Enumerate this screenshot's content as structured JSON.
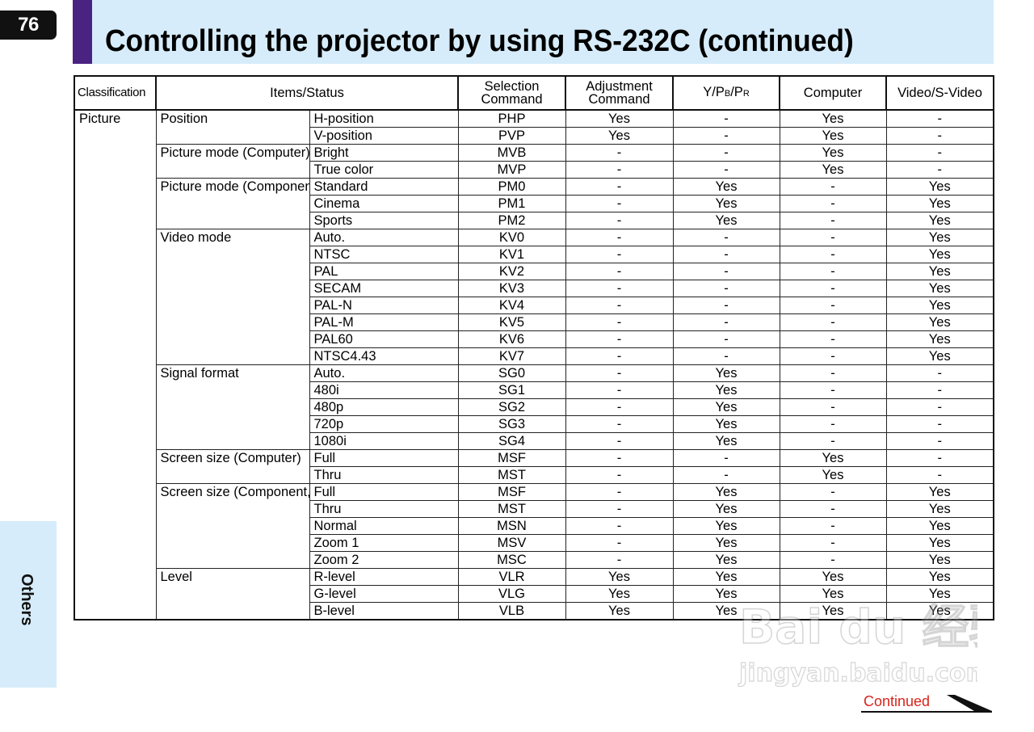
{
  "page": {
    "number": "76",
    "title": "Controlling the projector by using RS-232C (continued)",
    "side_tab": "Others",
    "continued_label": "Continued"
  },
  "table": {
    "headers": {
      "classification": "Classification",
      "items_status": "Items/Status",
      "selection_line1": "Selection",
      "selection_line2": "Command",
      "adjustment_line1": "Adjustment",
      "adjustment_line2": "Command",
      "ypbpr_y": "Y/P",
      "ypbpr_b": "B",
      "ypbpr_sep": "/P",
      "ypbpr_r": "R",
      "computer": "Computer",
      "video": "Video/S-Video"
    },
    "classification": "Picture",
    "groups": [
      {
        "label": "Position",
        "rows": [
          {
            "item": "H-position",
            "cmd": "PHP",
            "adj": "Yes",
            "ypbpr": "-",
            "computer": "Yes",
            "video": "-"
          },
          {
            "item": "V-position",
            "cmd": "PVP",
            "adj": "Yes",
            "ypbpr": "-",
            "computer": "Yes",
            "video": "-"
          }
        ]
      },
      {
        "label": "Picture mode (Computer)",
        "rows": [
          {
            "item": "Bright",
            "cmd": "MVB",
            "adj": "-",
            "ypbpr": "-",
            "computer": "Yes",
            "video": "-"
          },
          {
            "item": "True color",
            "cmd": "MVP",
            "adj": "-",
            "ypbpr": "-",
            "computer": "Yes",
            "video": "-"
          }
        ]
      },
      {
        "label": "Picture mode (Component, Video, S-Video)",
        "rows": [
          {
            "item": "Standard",
            "cmd": "PM0",
            "adj": "-",
            "ypbpr": "Yes",
            "computer": "-",
            "video": "Yes"
          },
          {
            "item": "Cinema",
            "cmd": "PM1",
            "adj": "-",
            "ypbpr": "Yes",
            "computer": "-",
            "video": "Yes"
          },
          {
            "item": "Sports",
            "cmd": "PM2",
            "adj": "-",
            "ypbpr": "Yes",
            "computer": "-",
            "video": "Yes"
          }
        ]
      },
      {
        "label": "Video mode",
        "rows": [
          {
            "item": "Auto.",
            "cmd": "KV0",
            "adj": "-",
            "ypbpr": "-",
            "computer": "-",
            "video": "Yes"
          },
          {
            "item": "NTSC",
            "cmd": "KV1",
            "adj": "-",
            "ypbpr": "-",
            "computer": "-",
            "video": "Yes"
          },
          {
            "item": "PAL",
            "cmd": "KV2",
            "adj": "-",
            "ypbpr": "-",
            "computer": "-",
            "video": "Yes"
          },
          {
            "item": "SECAM",
            "cmd": "KV3",
            "adj": "-",
            "ypbpr": "-",
            "computer": "-",
            "video": "Yes"
          },
          {
            "item": "PAL-N",
            "cmd": "KV4",
            "adj": "-",
            "ypbpr": "-",
            "computer": "-",
            "video": "Yes"
          },
          {
            "item": "PAL-M",
            "cmd": "KV5",
            "adj": "-",
            "ypbpr": "-",
            "computer": "-",
            "video": "Yes"
          },
          {
            "item": "PAL60",
            "cmd": "KV6",
            "adj": "-",
            "ypbpr": "-",
            "computer": "-",
            "video": "Yes"
          },
          {
            "item": "NTSC4.43",
            "cmd": "KV7",
            "adj": "-",
            "ypbpr": "-",
            "computer": "-",
            "video": "Yes"
          }
        ]
      },
      {
        "label": "Signal format",
        "rows": [
          {
            "item": "Auto.",
            "cmd": "SG0",
            "adj": "-",
            "ypbpr": "Yes",
            "computer": "-",
            "video": "-"
          },
          {
            "item": "480i",
            "cmd": "SG1",
            "adj": "-",
            "ypbpr": "Yes",
            "computer": "-",
            "video": "-"
          },
          {
            "item": "480p",
            "cmd": "SG2",
            "adj": "-",
            "ypbpr": "Yes",
            "computer": "-",
            "video": "-"
          },
          {
            "item": "720p",
            "cmd": "SG3",
            "adj": "-",
            "ypbpr": "Yes",
            "computer": "-",
            "video": "-"
          },
          {
            "item": "1080i",
            "cmd": "SG4",
            "adj": "-",
            "ypbpr": "Yes",
            "computer": "-",
            "video": "-"
          }
        ]
      },
      {
        "label": "Screen size (Computer)",
        "rows": [
          {
            "item": "Full",
            "cmd": "MSF",
            "adj": "-",
            "ypbpr": "-",
            "computer": "Yes",
            "video": "-"
          },
          {
            "item": "Thru",
            "cmd": "MST",
            "adj": "-",
            "ypbpr": "-",
            "computer": "Yes",
            "video": "-"
          }
        ]
      },
      {
        "label": "Screen size (Component, Video, S-Video)",
        "rows": [
          {
            "item": "Full",
            "cmd": "MSF",
            "adj": "-",
            "ypbpr": "Yes",
            "computer": "-",
            "video": "Yes"
          },
          {
            "item": "Thru",
            "cmd": "MST",
            "adj": "-",
            "ypbpr": "Yes",
            "computer": "-",
            "video": "Yes"
          },
          {
            "item": "Normal",
            "cmd": "MSN",
            "adj": "-",
            "ypbpr": "Yes",
            "computer": "-",
            "video": "Yes"
          },
          {
            "item": "Zoom 1",
            "cmd": "MSV",
            "adj": "-",
            "ypbpr": "Yes",
            "computer": "-",
            "video": "Yes"
          },
          {
            "item": "Zoom 2",
            "cmd": "MSC",
            "adj": "-",
            "ypbpr": "Yes",
            "computer": "-",
            "video": "Yes"
          }
        ]
      },
      {
        "label": "Level",
        "rows": [
          {
            "item": "R-level",
            "cmd": "VLR",
            "adj": "Yes",
            "ypbpr": "Yes",
            "computer": "Yes",
            "video": "Yes"
          },
          {
            "item": "G-level",
            "cmd": "VLG",
            "adj": "Yes",
            "ypbpr": "Yes",
            "computer": "Yes",
            "video": "Yes"
          },
          {
            "item": "B-level",
            "cmd": "VLB",
            "adj": "Yes",
            "ypbpr": "Yes",
            "computer": "Yes",
            "video": "Yes"
          }
        ]
      }
    ]
  },
  "watermark": {
    "line1": "Bai du 经验",
    "line2": "jingyan.baidu.com"
  },
  "colors": {
    "header_band": "#d6ecfa",
    "header_accent": "#4a2282",
    "page_number_bg": "#111111",
    "continued_text": "#d9241b"
  }
}
